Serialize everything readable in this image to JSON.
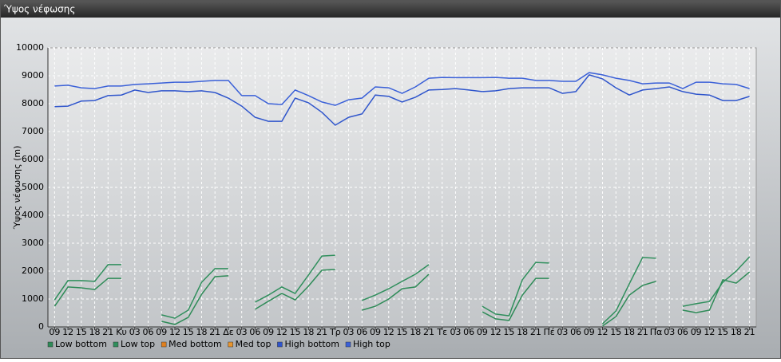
{
  "chart_data": {
    "type": "line",
    "title": "Ύψος νέφωσης",
    "ylabel": "Ύψος νέφωσης (m)",
    "categories": [
      "09",
      "12",
      "15",
      "18",
      "21",
      "Κυ",
      "03",
      "06",
      "09",
      "12",
      "15",
      "18",
      "21",
      "Δε",
      "03",
      "06",
      "09",
      "12",
      "15",
      "18",
      "21",
      "Τρ",
      "03",
      "06",
      "09",
      "12",
      "15",
      "18",
      "21",
      "Τε",
      "03",
      "06",
      "09",
      "12",
      "15",
      "18",
      "21",
      "Πέ",
      "03",
      "06",
      "09",
      "12",
      "15",
      "18",
      "21",
      "Πα",
      "03",
      "06",
      "09",
      "12",
      "15",
      "18",
      "21"
    ],
    "ylim": [
      0,
      10000
    ],
    "yticks": [
      0,
      1000,
      2000,
      3000,
      4000,
      5000,
      6000,
      7000,
      8000,
      9000,
      10000
    ],
    "grid": true,
    "legend": "bottom",
    "series": [
      {
        "name": "Low bottom",
        "color": "#2e8b57",
        "values": [
          740,
          1430,
          1400,
          1340,
          1740,
          1740,
          null,
          null,
          200,
          90,
          340,
          1170,
          1800,
          1830,
          null,
          630,
          920,
          1200,
          970,
          1460,
          2030,
          2060,
          null,
          600,
          740,
          1000,
          1370,
          1430,
          1890,
          null,
          null,
          null,
          540,
          290,
          230,
          1140,
          1740,
          1740,
          null,
          null,
          null,
          30,
          370,
          1140,
          1490,
          1630,
          null,
          600,
          510,
          600,
          1690,
          1570,
          1970
        ]
      },
      {
        "name": "Low top",
        "color": "#2f8f5c",
        "values": [
          970,
          1660,
          1660,
          1630,
          2230,
          2230,
          null,
          null,
          430,
          310,
          600,
          1600,
          2090,
          2090,
          null,
          890,
          1140,
          1430,
          1200,
          1860,
          2540,
          2570,
          null,
          950,
          1140,
          1370,
          1630,
          1890,
          2230,
          null,
          null,
          null,
          740,
          460,
          400,
          1690,
          2310,
          2290,
          null,
          null,
          null,
          110,
          570,
          1540,
          2490,
          2460,
          null,
          740,
          830,
          910,
          1600,
          2000,
          2510
        ]
      },
      {
        "name": "Med bottom",
        "color": "#e0801f",
        "values": [
          null,
          null,
          null,
          null,
          null,
          null,
          null,
          null,
          null,
          null,
          null,
          null,
          null,
          null,
          null,
          null,
          null,
          null,
          null,
          null,
          null,
          null,
          null,
          null,
          null,
          null,
          null,
          null,
          null,
          null,
          null,
          null,
          null,
          null,
          null,
          null,
          null,
          null,
          null,
          null,
          null,
          null,
          null,
          null,
          null,
          null,
          null,
          null,
          null,
          null,
          null,
          null,
          null
        ]
      },
      {
        "name": "Med top",
        "color": "#e8952e",
        "values": [
          null,
          null,
          null,
          null,
          null,
          null,
          null,
          null,
          null,
          null,
          null,
          null,
          null,
          null,
          null,
          null,
          null,
          null,
          null,
          null,
          null,
          null,
          null,
          null,
          null,
          null,
          null,
          null,
          null,
          null,
          null,
          null,
          null,
          null,
          null,
          null,
          null,
          null,
          null,
          null,
          null,
          null,
          null,
          null,
          null,
          null,
          null,
          null,
          null,
          null,
          null,
          null,
          null
        ]
      },
      {
        "name": "High bottom",
        "color": "#2f55cc",
        "values": [
          7890,
          7910,
          8090,
          8110,
          8290,
          8310,
          8490,
          8400,
          8460,
          8460,
          8430,
          8460,
          8400,
          8200,
          7910,
          7510,
          7370,
          7370,
          8200,
          8030,
          7690,
          7230,
          7510,
          7630,
          8310,
          8260,
          8060,
          8230,
          8490,
          8510,
          8540,
          8490,
          8430,
          8460,
          8540,
          8570,
          8570,
          8570,
          8370,
          8430,
          9030,
          8890,
          8570,
          8310,
          8490,
          8540,
          8600,
          8430,
          8340,
          8310,
          8110,
          8110,
          8260
        ]
      },
      {
        "name": "High top",
        "color": "#3a60d8",
        "values": [
          8630,
          8660,
          8570,
          8540,
          8630,
          8630,
          8690,
          8710,
          8740,
          8770,
          8770,
          8800,
          8830,
          8830,
          8290,
          8290,
          8000,
          7970,
          8490,
          8290,
          8060,
          7940,
          8140,
          8200,
          8600,
          8570,
          8370,
          8600,
          8910,
          8940,
          8930,
          8930,
          8930,
          8940,
          8910,
          8910,
          8830,
          8830,
          8800,
          8800,
          9110,
          9030,
          8910,
          8830,
          8710,
          8740,
          8740,
          8540,
          8770,
          8770,
          8710,
          8690,
          8540
        ]
      }
    ]
  }
}
